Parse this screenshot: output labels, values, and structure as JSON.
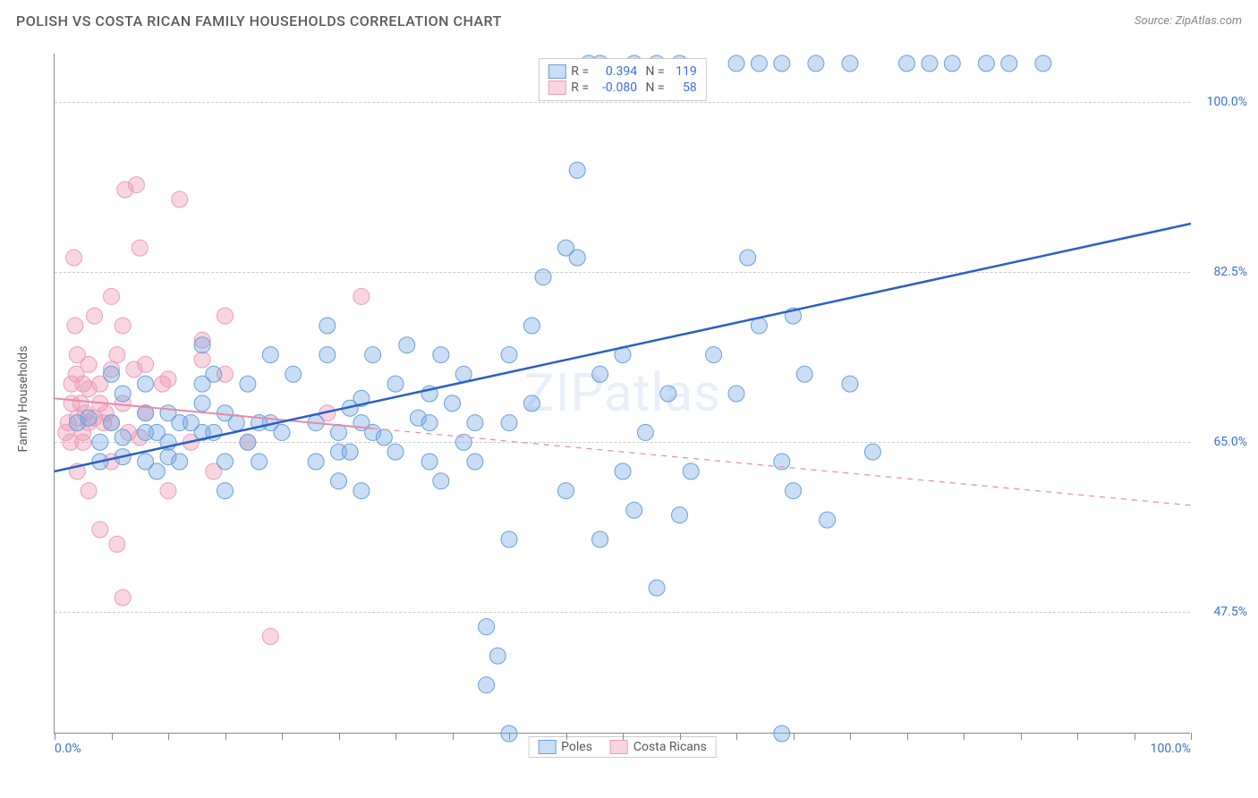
{
  "header": {
    "title": "POLISH VS COSTA RICAN FAMILY HOUSEHOLDS CORRELATION CHART",
    "source_label": "Source:",
    "source_name": "ZipAtlas.com"
  },
  "chart": {
    "type": "scatter",
    "ylabel": "Family Households",
    "watermark": "ZIPatlas",
    "background_color": "#ffffff",
    "xlim": [
      0,
      100
    ],
    "ylim": [
      35,
      105
    ],
    "y_ticks": [
      {
        "v": 47.5,
        "label": "47.5%"
      },
      {
        "v": 65.0,
        "label": "65.0%"
      },
      {
        "v": 82.5,
        "label": "82.5%"
      },
      {
        "v": 100.0,
        "label": "100.0%"
      }
    ],
    "x_tick_positions": [
      0,
      5,
      10,
      15,
      20,
      25,
      30,
      35,
      40,
      45,
      50,
      55,
      60,
      65,
      70,
      75,
      80,
      85,
      90,
      95,
      100
    ],
    "x_tick_labels": [
      {
        "v": 0,
        "label": "0.0%"
      },
      {
        "v": 100,
        "label": "100.0%"
      }
    ],
    "grid_color": "#cccccc",
    "series": {
      "poles": {
        "label": "Poles",
        "fill_color": "rgba(120,170,230,0.40)",
        "stroke_color": "#6a9fd8",
        "marker_radius": 9,
        "trend": {
          "x1": 0,
          "y1": 62.0,
          "x2": 100,
          "y2": 87.5,
          "color": "#2a5fc7",
          "width": 2.5,
          "dash": "none"
        },
        "stats": {
          "R": "0.394",
          "N": "119"
        },
        "points": [
          [
            2,
            67
          ],
          [
            3,
            67.5
          ],
          [
            4,
            63
          ],
          [
            5,
            67
          ],
          [
            6,
            63.5
          ],
          [
            4,
            65
          ],
          [
            6,
            65.5
          ],
          [
            6,
            70
          ],
          [
            5,
            72
          ],
          [
            8,
            66
          ],
          [
            8,
            63
          ],
          [
            9,
            66
          ],
          [
            10,
            63.5
          ],
          [
            10,
            65
          ],
          [
            11,
            67
          ],
          [
            13,
            66
          ],
          [
            13,
            69
          ],
          [
            13,
            75
          ],
          [
            14,
            72
          ],
          [
            14,
            66
          ],
          [
            15,
            63
          ],
          [
            15,
            68
          ],
          [
            15,
            60
          ],
          [
            16,
            67
          ],
          [
            17,
            65
          ],
          [
            17,
            71
          ],
          [
            19,
            67
          ],
          [
            19,
            74
          ],
          [
            20,
            66
          ],
          [
            21,
            72
          ],
          [
            23,
            67
          ],
          [
            23,
            63
          ],
          [
            24,
            74
          ],
          [
            24,
            77
          ],
          [
            25,
            66
          ],
          [
            25,
            64
          ],
          [
            25,
            61
          ],
          [
            26,
            68.5
          ],
          [
            27,
            69.5
          ],
          [
            27,
            60
          ],
          [
            28,
            66
          ],
          [
            28,
            74
          ],
          [
            29,
            65.5
          ],
          [
            30,
            71
          ],
          [
            30,
            64
          ],
          [
            31,
            75
          ],
          [
            32,
            67.5
          ],
          [
            33,
            70
          ],
          [
            33,
            63
          ],
          [
            34,
            74
          ],
          [
            34,
            61
          ],
          [
            35,
            69
          ],
          [
            36,
            65
          ],
          [
            36,
            72
          ],
          [
            37,
            63
          ],
          [
            37,
            67
          ],
          [
            38,
            40
          ],
          [
            38,
            46
          ],
          [
            39,
            43
          ],
          [
            40,
            55
          ],
          [
            40,
            67
          ],
          [
            40,
            35
          ],
          [
            40,
            74
          ],
          [
            42,
            69
          ],
          [
            42,
            77
          ],
          [
            43,
            82
          ],
          [
            45,
            60
          ],
          [
            45,
            85
          ],
          [
            46,
            93
          ],
          [
            46,
            84
          ],
          [
            47,
            104
          ],
          [
            48,
            72
          ],
          [
            48,
            55
          ],
          [
            50,
            62
          ],
          [
            50,
            74
          ],
          [
            51,
            58
          ],
          [
            52,
            66
          ],
          [
            53,
            50
          ],
          [
            54,
            70
          ],
          [
            55,
            57.5
          ],
          [
            55,
            104
          ],
          [
            56,
            62
          ],
          [
            58,
            74
          ],
          [
            60,
            104
          ],
          [
            60,
            70
          ],
          [
            61,
            84
          ],
          [
            62,
            104
          ],
          [
            62,
            77
          ],
          [
            64,
            63
          ],
          [
            64,
            35
          ],
          [
            65,
            60
          ],
          [
            65,
            78
          ],
          [
            66,
            72
          ],
          [
            67,
            104
          ],
          [
            68,
            57
          ],
          [
            70,
            104
          ],
          [
            70,
            71
          ],
          [
            72,
            64
          ],
          [
            75,
            104
          ],
          [
            77,
            104
          ],
          [
            79,
            104
          ],
          [
            82,
            104
          ],
          [
            84,
            104
          ],
          [
            87,
            104
          ],
          [
            64,
            104
          ],
          [
            48,
            104
          ],
          [
            51,
            104
          ],
          [
            53,
            104
          ],
          [
            8,
            68
          ],
          [
            8,
            71
          ],
          [
            9,
            62
          ],
          [
            10,
            68
          ],
          [
            11,
            63
          ],
          [
            12,
            67
          ],
          [
            13,
            71
          ],
          [
            18,
            67
          ],
          [
            18,
            63
          ],
          [
            26,
            64
          ],
          [
            27,
            67
          ],
          [
            33,
            67
          ]
        ]
      },
      "costa_ricans": {
        "label": "Costa Ricans",
        "fill_color": "rgba(240,150,180,0.40)",
        "stroke_color": "#e8a0b8",
        "marker_radius": 9,
        "trend": {
          "x1": 0,
          "y1": 69.5,
          "x2": 100,
          "y2": 58.5,
          "color": "#e88aa8",
          "width": 2,
          "dash_until_x": 28
        },
        "stats": {
          "R": "-0.080",
          "N": "58"
        },
        "points": [
          [
            1,
            66
          ],
          [
            1.2,
            67
          ],
          [
            1.4,
            65
          ],
          [
            1.5,
            69
          ],
          [
            1.5,
            71
          ],
          [
            1.7,
            84
          ],
          [
            1.8,
            77
          ],
          [
            1.9,
            72
          ],
          [
            2,
            67.5
          ],
          [
            2,
            62
          ],
          [
            2,
            74
          ],
          [
            2.3,
            69
          ],
          [
            2.5,
            66
          ],
          [
            2.5,
            65
          ],
          [
            2.5,
            71
          ],
          [
            2.7,
            68
          ],
          [
            3,
            67
          ],
          [
            3,
            70.5
          ],
          [
            3,
            73
          ],
          [
            3,
            60
          ],
          [
            3.5,
            67.5
          ],
          [
            3.5,
            78
          ],
          [
            4,
            69
          ],
          [
            4,
            71
          ],
          [
            4,
            56
          ],
          [
            4.3,
            67
          ],
          [
            4.5,
            68
          ],
          [
            5,
            80
          ],
          [
            5,
            72.5
          ],
          [
            5,
            63
          ],
          [
            5,
            67
          ],
          [
            5.5,
            74
          ],
          [
            5.5,
            54.5
          ],
          [
            6,
            69
          ],
          [
            6,
            77
          ],
          [
            6.2,
            91
          ],
          [
            6.5,
            66
          ],
          [
            7,
            72.5
          ],
          [
            7.2,
            91.5
          ],
          [
            7.5,
            65.5
          ],
          [
            7.5,
            85
          ],
          [
            8,
            73
          ],
          [
            8,
            68
          ],
          [
            6,
            49
          ],
          [
            9.5,
            71
          ],
          [
            10,
            60
          ],
          [
            10,
            71.5
          ],
          [
            11,
            90
          ],
          [
            12,
            65
          ],
          [
            13,
            73.5
          ],
          [
            13,
            75.5
          ],
          [
            14,
            62
          ],
          [
            15,
            72
          ],
          [
            15,
            78
          ],
          [
            17,
            65
          ],
          [
            19,
            45
          ],
          [
            24,
            68
          ],
          [
            27,
            80
          ]
        ]
      }
    },
    "legend_top": {
      "border_color": "#cccccc",
      "text_color": "#5a5a5a",
      "value_color": "#3b6fd6"
    },
    "legend_bottom_items": [
      {
        "key": "poles"
      },
      {
        "key": "costa_ricans"
      }
    ]
  }
}
